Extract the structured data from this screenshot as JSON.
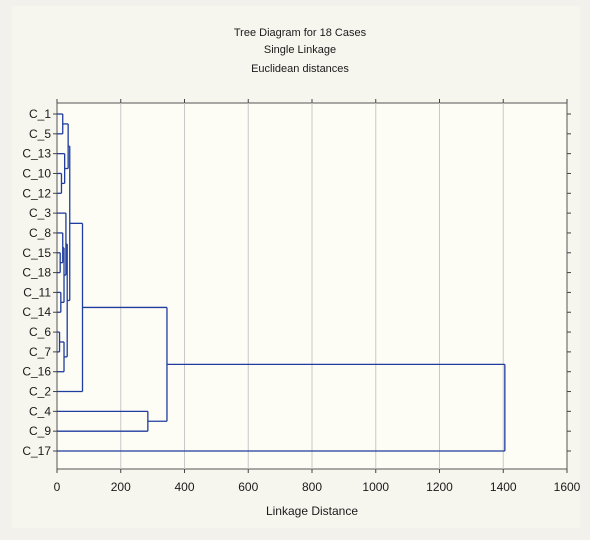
{
  "chart_data": {
    "type": "dendrogram",
    "title_lines": [
      "Tree Diagram for 18 Cases",
      "Single Linkage",
      "Euclidean distances"
    ],
    "xlabel": "Linkage Distance",
    "ylabel": "",
    "x_ticks": [
      0,
      200,
      400,
      600,
      800,
      1000,
      1200,
      1400,
      1600
    ],
    "xlim": [
      0,
      1600
    ],
    "grid": "vertical",
    "orientation": "horizontal",
    "leaves": [
      "C_1",
      "C_5",
      "C_13",
      "C_10",
      "C_12",
      "C_3",
      "C_8",
      "C_15",
      "C_18",
      "C_11",
      "C_14",
      "C_6",
      "C_7",
      "C_16",
      "C_2",
      "C_4",
      "C_9",
      "C_17"
    ],
    "merges": [
      {
        "a": "C_1",
        "b": "C_5",
        "height": 18
      },
      {
        "a": "C_10",
        "b": "C_12",
        "height": 14
      },
      {
        "a": "C_13",
        "b": "m2",
        "height": 24
      },
      {
        "a": "m1",
        "b": "m3",
        "height": 35
      },
      {
        "a": "C_15",
        "b": "C_18",
        "height": 10
      },
      {
        "a": "C_8",
        "b": "m5",
        "height": 18
      },
      {
        "a": "C_11",
        "b": "C_14",
        "height": 12
      },
      {
        "a": "m6",
        "b": "m7",
        "height": 22
      },
      {
        "a": "C_3",
        "b": "m8",
        "height": 28
      },
      {
        "a": "C_6",
        "b": "C_7",
        "height": 8
      },
      {
        "a": "m10",
        "b": "C_16",
        "height": 22
      },
      {
        "a": "m9",
        "b": "m11",
        "height": 32
      },
      {
        "a": "m4",
        "b": "m12",
        "height": 40
      },
      {
        "a": "m13",
        "b": "C_2",
        "height": 80
      },
      {
        "a": "C_4",
        "b": "C_9",
        "height": 285
      },
      {
        "a": "m14",
        "b": "m15",
        "height": 345
      },
      {
        "a": "m16",
        "b": "C_17",
        "height": 1405
      }
    ],
    "colors": {
      "line": "#1f3c9e",
      "grid": "#c8c8c8",
      "background": "#fdfcf5"
    }
  }
}
